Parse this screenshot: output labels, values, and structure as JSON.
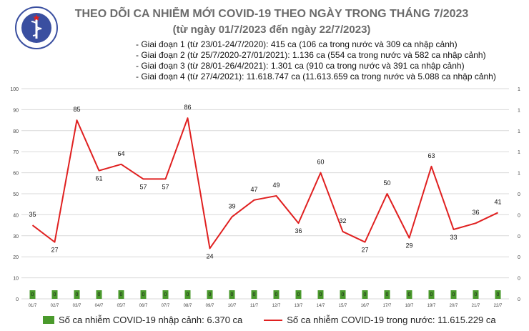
{
  "header": {
    "logo_text": "BỘ Y TẾ · MINISTRY OF HEALTH",
    "title": "THEO DÕI CA NHIỄM MỚI COVID-19 THEO NGÀY TRONG THÁNG 7/2023",
    "subtitle": "(từ ngày 01/7/2023 đến ngày 22/7/2023)",
    "notes": [
      "Giai đoạn 1 (từ 23/01-24/7/2020): 415 ca (106 ca trong nước và 309 ca nhập cảnh)",
      "Giai đoạn 2 (từ 25/7/2020-27/01/2021): 1.136 ca (554 ca trong nước và 582 ca nhập cảnh)",
      "Giai đoạn 3 (từ 28/01-26/4/2021): 1.301 ca (910 ca trong nước và 391 ca nhập cảnh)",
      "Giai đoạn 4 (từ 27/4/2021): 11.618.747 ca (11.613.659 ca trong nước và 5.088 ca nhập cảnh)"
    ]
  },
  "colors": {
    "line": "#e02020",
    "bar": "#4a9a2c",
    "title": "#6b6b6b",
    "grid": "#d9d9d9"
  },
  "chart_data": {
    "type": "line",
    "categories": [
      "01/7",
      "02/7",
      "03/7",
      "04/7",
      "05/7",
      "06/7",
      "07/7",
      "08/7",
      "09/7",
      "10/7",
      "11/7",
      "12/7",
      "13/7",
      "14/7",
      "15/7",
      "16/7",
      "17/7",
      "18/7",
      "19/7",
      "20/7",
      "21/7",
      "22/7"
    ],
    "series": [
      {
        "name": "Số ca nhiễm COVID-19 trong nước: 11.615.229 ca",
        "type": "line",
        "values": [
          35,
          27,
          85,
          61,
          64,
          57,
          57,
          86,
          24,
          39,
          47,
          49,
          36,
          60,
          32,
          27,
          50,
          29,
          63,
          33,
          36,
          41
        ],
        "color": "#e02020"
      },
      {
        "name": "Số ca nhiễm COVID-19 nhập cảnh: 6.370 ca",
        "type": "bar",
        "axis": "right",
        "values": [
          0,
          0,
          0,
          0,
          0,
          0,
          0,
          0,
          0,
          0,
          0,
          0,
          0,
          0,
          0,
          0,
          0,
          0,
          0,
          0,
          0,
          0
        ],
        "bar_labels": [
          "0",
          "0",
          "0",
          "0",
          "0",
          "0",
          "0",
          "0",
          "0",
          "0",
          "0",
          "0",
          "0",
          "0",
          "0",
          "0",
          "0",
          "0",
          "0",
          "0",
          "0",
          "0"
        ],
        "color": "#4a9a2c"
      }
    ],
    "ylim": [
      0,
      100
    ],
    "yticks": [
      "0",
      "10",
      "20",
      "30",
      "40",
      "50",
      "60",
      "70",
      "80",
      "90",
      "100"
    ],
    "y2ticks": [
      "0",
      "0",
      "0",
      "0",
      "0",
      "0",
      "1",
      "1",
      "1",
      "1",
      "1"
    ],
    "grid": true,
    "legend": "bottom"
  },
  "legend": {
    "bar_label": "Số ca nhiễm COVID-19 nhập cảnh: 6.370 ca",
    "line_label": "Số ca nhiễm COVID-19 trong nước: 11.615.229 ca"
  }
}
